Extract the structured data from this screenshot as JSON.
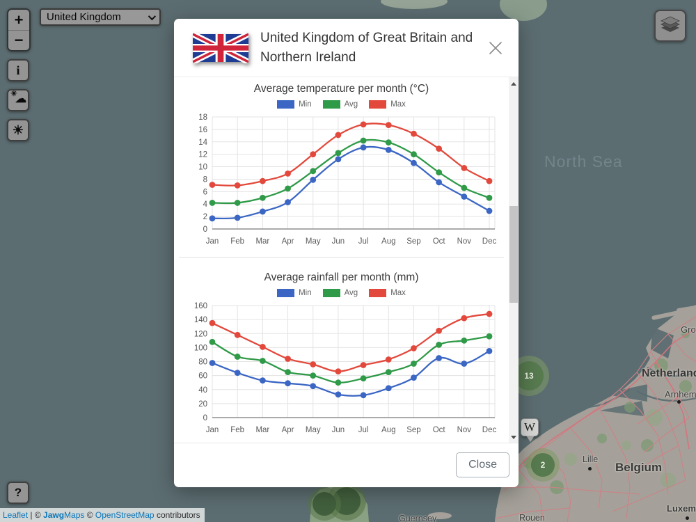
{
  "controls": {
    "zoom_in": "+",
    "zoom_out": "−",
    "country_selected": "United Kingdom",
    "info": "i",
    "weather_sun": "☀",
    "weather_cloud": "☁",
    "sun": "☀",
    "help": "?"
  },
  "modal": {
    "title": "United Kingdom of Great Britain and Northern Ireland",
    "close_button": "Close"
  },
  "chart_data": [
    {
      "type": "line",
      "title": "Average temperature per month (°C)",
      "categories": [
        "Jan",
        "Feb",
        "Mar",
        "Apr",
        "May",
        "Jun",
        "Jul",
        "Aug",
        "Sep",
        "Oct",
        "Nov",
        "Dec"
      ],
      "ylim": [
        0,
        18
      ],
      "yticks": [
        0,
        2,
        4,
        6,
        8,
        10,
        12,
        14,
        16,
        18
      ],
      "grid": true,
      "legend_position": "top",
      "series": [
        {
          "name": "Min",
          "color": "#3b66c4",
          "values": [
            1.7,
            1.8,
            2.8,
            4.3,
            7.9,
            11.2,
            13.1,
            12.7,
            10.6,
            7.5,
            5.2,
            2.9
          ]
        },
        {
          "name": "Avg",
          "color": "#2f9a48",
          "values": [
            4.2,
            4.2,
            5.0,
            6.5,
            9.3,
            12.2,
            14.2,
            13.9,
            12.0,
            9.1,
            6.6,
            5.0
          ]
        },
        {
          "name": "Max",
          "color": "#e2493c",
          "values": [
            7.1,
            7.0,
            7.7,
            8.9,
            12.0,
            15.1,
            16.8,
            16.7,
            15.3,
            12.9,
            9.8,
            7.7
          ]
        }
      ]
    },
    {
      "type": "line",
      "title": "Average rainfall per month (mm)",
      "categories": [
        "Jan",
        "Feb",
        "Mar",
        "Apr",
        "May",
        "Jun",
        "Jul",
        "Aug",
        "Sep",
        "Oct",
        "Nov",
        "Dec"
      ],
      "ylim": [
        0,
        160
      ],
      "yticks": [
        0,
        20,
        40,
        60,
        80,
        100,
        120,
        140,
        160
      ],
      "grid": true,
      "legend_position": "top",
      "series": [
        {
          "name": "Min",
          "color": "#3b66c4",
          "values": [
            78,
            64,
            53,
            49,
            45,
            33,
            32,
            42,
            57,
            85,
            77,
            95
          ]
        },
        {
          "name": "Avg",
          "color": "#2f9a48",
          "values": [
            108,
            87,
            81,
            65,
            60,
            50,
            56,
            65,
            77,
            104,
            110,
            116
          ]
        },
        {
          "name": "Max",
          "color": "#e2493c",
          "values": [
            135,
            118,
            101,
            84,
            76,
            66,
            75,
            83,
            99,
            124,
            142,
            148
          ]
        }
      ]
    }
  ],
  "map": {
    "sea_label": "North Sea",
    "labels": {
      "groningen": "Groningen",
      "netherlands": "Netherlands",
      "arnhem": "Arnhem",
      "belgium": "Belgium",
      "lille": "Lille",
      "luxembourg": "Luxembourg",
      "guernsey": "Guernsey",
      "rouen": "Rouen"
    },
    "clusters": {
      "a": "13",
      "b": "2"
    },
    "wiki_marker": "W"
  },
  "attribution": {
    "leaflet": "Leaflet",
    "sep": " | ",
    "c1": "© ",
    "jawg": "Jawg",
    "maps": "Maps",
    "c2": " © ",
    "osm": "OpenStreetMap",
    "contrib": " contributors"
  }
}
